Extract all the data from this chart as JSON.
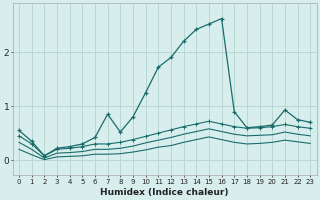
{
  "xlabel": "Humidex (Indice chaleur)",
  "bg_color": "#d8eeed",
  "grid_color": "#b8d8d5",
  "line_color": "#1a6b6b",
  "x_values": [
    0,
    1,
    2,
    3,
    4,
    5,
    6,
    7,
    8,
    9,
    10,
    11,
    12,
    13,
    14,
    15,
    16,
    17,
    18,
    19,
    20,
    21,
    22,
    23
  ],
  "series1": [
    0.55,
    0.35,
    0.08,
    0.22,
    0.25,
    0.3,
    0.42,
    0.85,
    0.52,
    0.8,
    1.25,
    1.72,
    1.9,
    2.2,
    2.42,
    2.52,
    2.62,
    0.9,
    0.6,
    0.62,
    0.65,
    0.93,
    0.75,
    0.7
  ],
  "series2": [
    0.45,
    0.3,
    0.08,
    0.2,
    0.22,
    0.25,
    0.3,
    0.3,
    0.33,
    0.38,
    0.44,
    0.5,
    0.56,
    0.62,
    0.67,
    0.72,
    0.67,
    0.62,
    0.59,
    0.6,
    0.62,
    0.66,
    0.62,
    0.59
  ],
  "series3": [
    0.33,
    0.2,
    0.04,
    0.13,
    0.14,
    0.16,
    0.2,
    0.2,
    0.22,
    0.26,
    0.32,
    0.37,
    0.42,
    0.48,
    0.53,
    0.58,
    0.53,
    0.48,
    0.45,
    0.46,
    0.47,
    0.52,
    0.48,
    0.45
  ],
  "series4": [
    0.2,
    0.1,
    0.01,
    0.06,
    0.07,
    0.08,
    0.11,
    0.11,
    0.12,
    0.15,
    0.19,
    0.24,
    0.27,
    0.33,
    0.38,
    0.43,
    0.38,
    0.33,
    0.3,
    0.31,
    0.33,
    0.37,
    0.34,
    0.31
  ],
  "ylim": [
    -0.28,
    2.9
  ],
  "xlim": [
    -0.5,
    23.5
  ],
  "yticks": [
    0,
    1,
    2
  ],
  "xticks": [
    0,
    1,
    2,
    3,
    4,
    5,
    6,
    7,
    8,
    9,
    10,
    11,
    12,
    13,
    14,
    15,
    16,
    17,
    18,
    19,
    20,
    21,
    22,
    23
  ]
}
